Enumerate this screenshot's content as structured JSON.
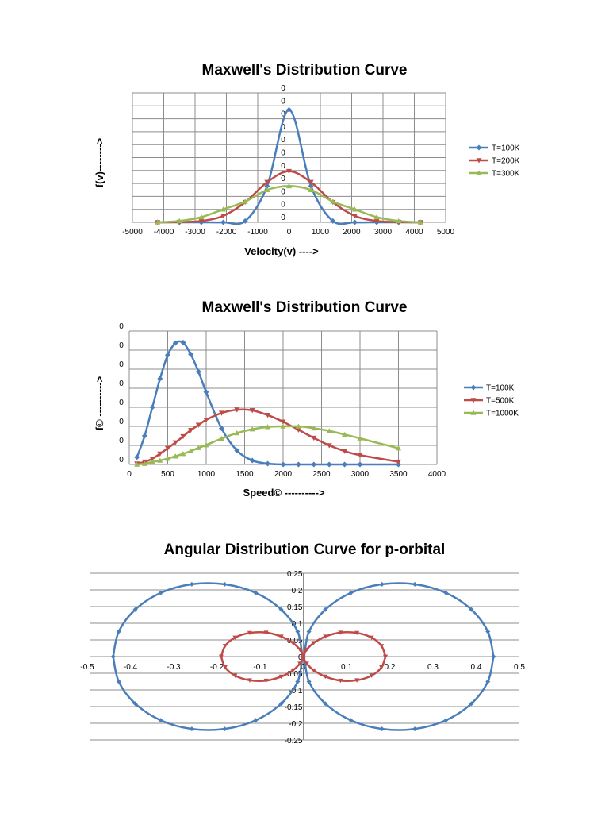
{
  "chart_data": [
    {
      "type": "line",
      "title": "Maxwell's Distribution Curve",
      "xlabel": "Velocity(v) ---->",
      "ylabel": "f(v)-------->",
      "xlim": [
        -5000,
        5000
      ],
      "xticks": [
        "-5000",
        "-4000",
        "-3000",
        "-2000",
        "-1000",
        "0",
        "1000",
        "2000",
        "3000",
        "4000",
        "5000"
      ],
      "ylim": [
        0,
        10
      ],
      "yticks": [
        "0",
        "0",
        "0",
        "0",
        "0",
        "0",
        "0",
        "0",
        "0",
        "0",
        "0"
      ],
      "grid": true,
      "legend": "right",
      "x": [
        -4200,
        -3500,
        -2800,
        -2100,
        -1400,
        -700,
        0,
        700,
        1400,
        2100,
        2800,
        3500,
        4200
      ],
      "series": [
        {
          "name": "T=100K",
          "color": "#4a7ebb",
          "marker": "diamond",
          "values": [
            0,
            0,
            0,
            0,
            0.1,
            2.8,
            8.7,
            2.8,
            0.1,
            0,
            0,
            0,
            0
          ]
        },
        {
          "name": "T=200K",
          "color": "#be4b48",
          "marker": "triangle-down",
          "values": [
            0,
            0.02,
            0.1,
            0.5,
            1.55,
            3.1,
            3.95,
            3.1,
            1.55,
            0.5,
            0.1,
            0.02,
            0
          ]
        },
        {
          "name": "T=300K",
          "color": "#98b954",
          "marker": "triangle-up",
          "values": [
            0,
            0.1,
            0.4,
            1.0,
            1.6,
            2.5,
            2.8,
            2.5,
            1.6,
            1.0,
            0.4,
            0.1,
            0
          ]
        }
      ]
    },
    {
      "type": "line",
      "title": "Maxwell's Distribution Curve",
      "xlabel": "Speed© ---------->",
      "ylabel": "f© ---------->",
      "xlim": [
        0,
        4000
      ],
      "xticks": [
        "0",
        "500",
        "1000",
        "1500",
        "2000",
        "2500",
        "3000",
        "3500",
        "4000"
      ],
      "ylim": [
        0,
        7
      ],
      "yticks": [
        "0",
        "0",
        "0",
        "0",
        "0",
        "0",
        "0",
        "0"
      ],
      "grid": true,
      "legend": "right",
      "x": [
        100,
        200,
        300,
        400,
        500,
        600,
        700,
        800,
        900,
        1000,
        1200,
        1400,
        1600,
        1800,
        2000,
        2200,
        2400,
        2600,
        2800,
        3000,
        3500
      ],
      "series": [
        {
          "name": "T=100K",
          "color": "#4a7ebb",
          "marker": "diamond",
          "values": [
            0.38,
            1.5,
            3.0,
            4.5,
            5.74,
            6.37,
            6.4,
            5.78,
            4.87,
            3.8,
            1.89,
            0.73,
            0.21,
            0.04,
            0,
            0,
            0,
            0,
            0,
            0,
            0
          ]
        },
        {
          "name": "T=500K",
          "color": "#be4b48",
          "marker": "triangle-down",
          "values": [
            0.04,
            0.14,
            0.3,
            0.56,
            0.85,
            1.15,
            1.47,
            1.8,
            2.07,
            2.34,
            2.7,
            2.87,
            2.84,
            2.59,
            2.24,
            1.82,
            1.39,
            1.0,
            0.7,
            0.49,
            0.14
          ]
        },
        {
          "name": "T=1000K",
          "color": "#98b954",
          "marker": "triangle-up",
          "values": [
            0,
            0.04,
            0.13,
            0.21,
            0.31,
            0.43,
            0.56,
            0.7,
            0.87,
            1.02,
            1.36,
            1.65,
            1.85,
            1.97,
            2.0,
            2.0,
            1.9,
            1.76,
            1.57,
            1.37,
            0.85
          ]
        }
      ]
    },
    {
      "type": "scatter",
      "title": "Angular Distribution Curve for p-orbital",
      "xlabel": "",
      "ylabel": "",
      "xlim": [
        -0.5,
        0.5
      ],
      "xticks": [
        "-0.5",
        "-0.4",
        "-0.3",
        "-0.2",
        "-0.1",
        "0",
        "0.1",
        "0.2",
        "0.3",
        "0.4",
        "0.5"
      ],
      "ylim": [
        -0.25,
        0.25
      ],
      "yticks": [
        "0.25",
        "0.2",
        "0.15",
        "0.1",
        "0.05",
        "0",
        "-0.05",
        "-0.1",
        "-0.15",
        "-0.2",
        "-0.25"
      ],
      "grid": true,
      "legend": "none",
      "series": [
        {
          "color": "#4a7ebb",
          "marker": "diamond",
          "x": [
            0.44,
            0.427,
            0.389,
            0.33,
            0.258,
            0.182,
            0.11,
            0.051,
            0.013,
            0,
            -0.013,
            -0.051,
            -0.11,
            -0.182,
            -0.258,
            -0.33,
            -0.389,
            -0.427,
            -0.44,
            -0.427,
            -0.389,
            -0.33,
            -0.258,
            -0.182,
            -0.11,
            -0.051,
            -0.013,
            0,
            0.013,
            0.051,
            0.11,
            0.182,
            0.258,
            0.33,
            0.389,
            0.427,
            0.44
          ],
          "y": [
            0,
            0.075,
            0.141,
            0.191,
            0.217,
            0.217,
            0.191,
            0.141,
            0.075,
            0,
            0.075,
            0.141,
            0.191,
            0.217,
            0.217,
            0.191,
            0.141,
            0.075,
            0,
            -0.075,
            -0.141,
            -0.191,
            -0.217,
            -0.217,
            -0.191,
            -0.141,
            -0.075,
            0,
            -0.075,
            -0.141,
            -0.191,
            -0.217,
            -0.217,
            -0.191,
            -0.141,
            -0.075,
            0
          ]
        },
        {
          "color": "#be4b48",
          "marker": "triangle-down",
          "x": [
            0.19,
            0.181,
            0.158,
            0.124,
            0.086,
            0.051,
            0.024,
            0.008,
            0.001,
            0,
            -0.001,
            -0.008,
            -0.024,
            -0.051,
            -0.086,
            -0.124,
            -0.158,
            -0.181,
            -0.19,
            -0.181,
            -0.158,
            -0.124,
            -0.086,
            -0.051,
            -0.024,
            -0.008,
            -0.001,
            0,
            0.001,
            0.008,
            0.024,
            0.051,
            0.086,
            0.124,
            0.158,
            0.181,
            0.19
          ],
          "y": [
            0,
            0.032,
            0.057,
            0.071,
            0.072,
            0.06,
            0.041,
            0.021,
            0.006,
            0,
            0.006,
            0.021,
            0.041,
            0.06,
            0.072,
            0.071,
            0.057,
            0.032,
            0,
            -0.032,
            -0.057,
            -0.071,
            -0.072,
            -0.06,
            -0.041,
            -0.021,
            -0.006,
            0,
            -0.006,
            -0.021,
            -0.041,
            -0.06,
            -0.072,
            -0.071,
            -0.057,
            -0.032,
            0
          ]
        }
      ]
    }
  ]
}
